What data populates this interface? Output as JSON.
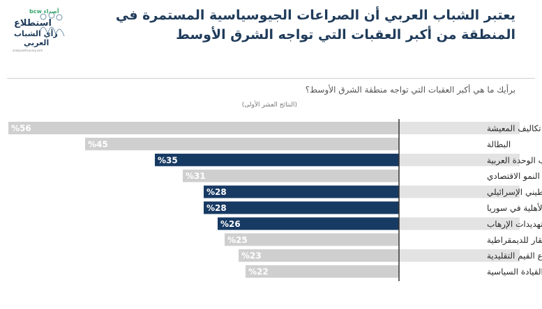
{
  "logo": {
    "brand": "bcw أصداء",
    "line1": "استطلاع",
    "line2": "رأي الشباب",
    "line3": "العربي",
    "url": "arabyouthsurvey.com"
  },
  "title_lines": [
    "يعتبر الشباب العربي أن الصراعات الجيوسياسية المستمرة في",
    "المنطقة من أكبر العقبات التي تواجه الشرق الأوسط"
  ],
  "question": "برأيك ما هي أكبر العقبات التي تواجه منطقة الشرق الأوسط؟",
  "note": "(النتائج العشر الأولى)",
  "colors": {
    "highlight": "#173a63",
    "normal": "#cfcfcf",
    "row_band": "#e3e3e3",
    "label_text": "#2b2b2b"
  },
  "chart_data": {
    "type": "bar",
    "orientation": "horizontal",
    "categories": [
      "ارتفاع تكاليف المعيشة",
      "البطالة",
      "غياب الوحدة العربية",
      "تباطؤ النمو الاقتصادي",
      "الصراع الفلسطيني الإسرائيلي",
      "الحرب الأهلية في سوريا",
      "تهديدات الإرهاب",
      "الافتقار للديمقراطية",
      "ضياع القيم التقليدية",
      "ضعف القيادة السياسية"
    ],
    "values": [
      56,
      45,
      35,
      31,
      28,
      28,
      26,
      25,
      23,
      22
    ],
    "value_labels": [
      "%56",
      "%45",
      "%35",
      "%31",
      "%28",
      "%28",
      "%26",
      "%25",
      "%23",
      "%22"
    ],
    "highlighted": [
      false,
      false,
      true,
      false,
      true,
      true,
      true,
      false,
      false,
      false
    ],
    "xlim": [
      0,
      56
    ]
  }
}
